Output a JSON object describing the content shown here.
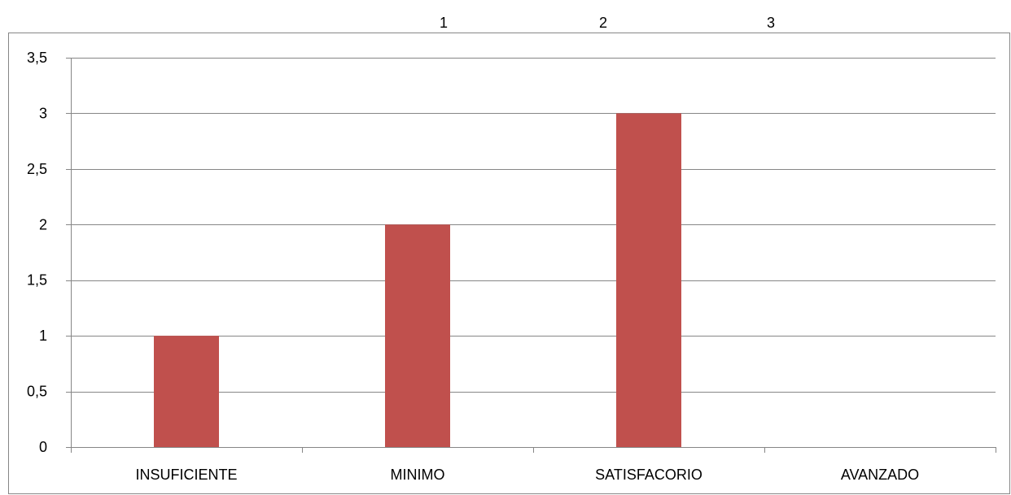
{
  "chart_data": {
    "type": "bar",
    "title": "",
    "xlabel": "",
    "ylabel": "",
    "top_labels": [
      "1",
      "2",
      "3"
    ],
    "categories": [
      "INSUFICIENTE",
      "MINIMO",
      "SATISFACORIO",
      "AVANZADO"
    ],
    "series": [
      {
        "values": [
          1,
          2,
          3,
          0
        ]
      }
    ],
    "ylim": [
      0,
      3.5
    ],
    "y_ticks": [
      "0",
      "0,5",
      "1",
      "1,5",
      "2",
      "2,5",
      "3",
      "3,5"
    ],
    "y_tick_values": [
      0,
      0.5,
      1,
      1.5,
      2,
      2.5,
      3,
      3.5
    ],
    "grid": true,
    "legend": "none",
    "colors": {
      "bar": "#c0504d",
      "grid": "#868686",
      "axis": "#868686",
      "border": "#868686"
    }
  }
}
